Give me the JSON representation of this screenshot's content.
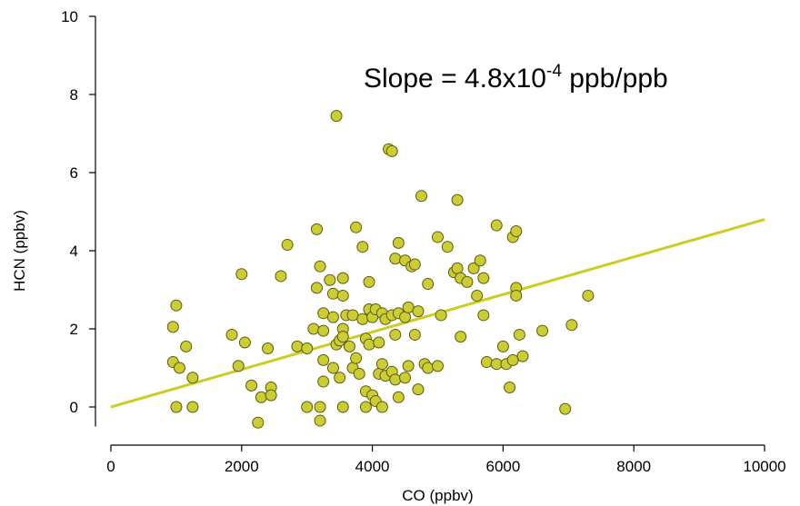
{
  "chart_data": {
    "type": "scatter",
    "xlabel": "CO (ppbv)",
    "ylabel": "HCN (ppbv)",
    "xlim": [
      0,
      10000
    ],
    "ylim": [
      -0.5,
      10
    ],
    "xticks": [
      0,
      2000,
      4000,
      6000,
      8000,
      10000
    ],
    "yticks": [
      0,
      2,
      4,
      6,
      8,
      10
    ],
    "annotation": {
      "prefix": "Slope = 4.8x10",
      "exponent": "-4",
      "suffix": " ppb/ppb"
    },
    "marker_fill": "#cccc33",
    "marker_stroke": "#5a5a10",
    "line_color": "#cccc22",
    "fit_line": {
      "x": [
        0,
        10000
      ],
      "y": [
        0,
        4.8
      ]
    },
    "points": [
      [
        950,
        1.15
      ],
      [
        1000,
        0.0
      ],
      [
        950,
        2.05
      ],
      [
        1000,
        2.6
      ],
      [
        1050,
        1.0
      ],
      [
        1150,
        1.55
      ],
      [
        1250,
        0.75
      ],
      [
        1250,
        0.0
      ],
      [
        1850,
        1.85
      ],
      [
        1950,
        1.05
      ],
      [
        2000,
        3.4
      ],
      [
        2050,
        1.65
      ],
      [
        2150,
        0.55
      ],
      [
        2250,
        -0.4
      ],
      [
        2300,
        0.25
      ],
      [
        2400,
        1.5
      ],
      [
        2450,
        0.5
      ],
      [
        2450,
        0.3
      ],
      [
        2600,
        3.35
      ],
      [
        2700,
        4.15
      ],
      [
        2850,
        1.55
      ],
      [
        3000,
        1.5
      ],
      [
        3000,
        0.0
      ],
      [
        3100,
        2.0
      ],
      [
        3150,
        4.55
      ],
      [
        3150,
        3.05
      ],
      [
        3200,
        3.6
      ],
      [
        3200,
        0.0
      ],
      [
        3200,
        -0.35
      ],
      [
        3250,
        2.4
      ],
      [
        3250,
        1.95
      ],
      [
        3250,
        1.2
      ],
      [
        3250,
        0.65
      ],
      [
        3350,
        3.25
      ],
      [
        3400,
        2.9
      ],
      [
        3400,
        2.3
      ],
      [
        3400,
        1.0
      ],
      [
        3450,
        7.45
      ],
      [
        3450,
        1.6
      ],
      [
        3500,
        1.7
      ],
      [
        3500,
        0.75
      ],
      [
        3550,
        3.3
      ],
      [
        3550,
        2.85
      ],
      [
        3550,
        2.0
      ],
      [
        3550,
        1.8
      ],
      [
        3550,
        0.0
      ],
      [
        3600,
        2.35
      ],
      [
        3650,
        1.55
      ],
      [
        3700,
        2.35
      ],
      [
        3700,
        1.0
      ],
      [
        3750,
        4.6
      ],
      [
        3750,
        1.25
      ],
      [
        3800,
        0.85
      ],
      [
        3850,
        4.1
      ],
      [
        3850,
        2.25
      ],
      [
        3900,
        1.75
      ],
      [
        3900,
        0.0
      ],
      [
        3900,
        0.4
      ],
      [
        3950,
        3.2
      ],
      [
        3950,
        2.5
      ],
      [
        3950,
        1.6
      ],
      [
        4000,
        2.3
      ],
      [
        4000,
        0.3
      ],
      [
        4050,
        2.5
      ],
      [
        4050,
        0.15
      ],
      [
        4100,
        1.65
      ],
      [
        4100,
        0.85
      ],
      [
        4150,
        2.4
      ],
      [
        4150,
        1.1
      ],
      [
        4150,
        0.0
      ],
      [
        4200,
        2.25
      ],
      [
        4200,
        0.8
      ],
      [
        4250,
        6.6
      ],
      [
        4300,
        6.55
      ],
      [
        4300,
        2.35
      ],
      [
        4300,
        0.9
      ],
      [
        4350,
        3.8
      ],
      [
        4350,
        1.85
      ],
      [
        4350,
        0.7
      ],
      [
        4400,
        4.2
      ],
      [
        4400,
        2.4
      ],
      [
        4400,
        0.25
      ],
      [
        4500,
        3.75
      ],
      [
        4500,
        2.3
      ],
      [
        4500,
        0.75
      ],
      [
        4550,
        2.55
      ],
      [
        4550,
        1.05
      ],
      [
        4600,
        3.6
      ],
      [
        4650,
        3.65
      ],
      [
        4650,
        1.85
      ],
      [
        4700,
        2.45
      ],
      [
        4700,
        0.45
      ],
      [
        4750,
        5.4
      ],
      [
        4800,
        1.1
      ],
      [
        4850,
        3.15
      ],
      [
        4850,
        1.0
      ],
      [
        5000,
        4.35
      ],
      [
        5000,
        1.05
      ],
      [
        5050,
        2.35
      ],
      [
        5150,
        4.1
      ],
      [
        5250,
        3.45
      ],
      [
        5300,
        3.55
      ],
      [
        5300,
        5.3
      ],
      [
        5350,
        1.8
      ],
      [
        5350,
        3.3
      ],
      [
        5450,
        3.2
      ],
      [
        5550,
        3.55
      ],
      [
        5600,
        2.85
      ],
      [
        5650,
        3.75
      ],
      [
        5700,
        2.35
      ],
      [
        5700,
        3.3
      ],
      [
        5750,
        1.15
      ],
      [
        5900,
        4.65
      ],
      [
        5900,
        1.1
      ],
      [
        6000,
        1.55
      ],
      [
        6050,
        1.1
      ],
      [
        6100,
        0.5
      ],
      [
        6150,
        1.2
      ],
      [
        6150,
        4.35
      ],
      [
        6200,
        4.5
      ],
      [
        6200,
        3.05
      ],
      [
        6200,
        2.85
      ],
      [
        6250,
        1.85
      ],
      [
        6300,
        1.3
      ],
      [
        6600,
        1.95
      ],
      [
        6950,
        -0.05
      ],
      [
        7050,
        2.1
      ],
      [
        7300,
        2.85
      ]
    ]
  }
}
